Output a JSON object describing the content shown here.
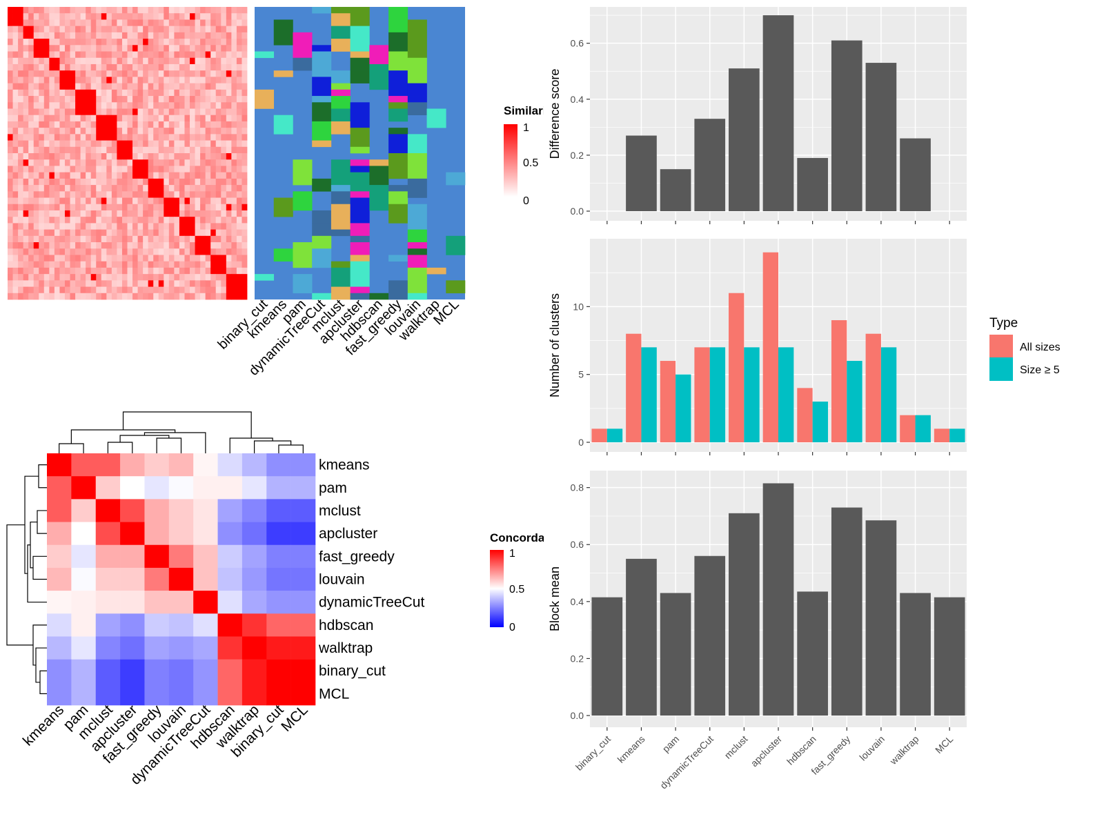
{
  "methods": [
    "binary_cut",
    "kmeans",
    "pam",
    "dynamicTreeCut",
    "mclust",
    "apcluster",
    "hdbscan",
    "fast_greedy",
    "louvain",
    "walktrap",
    "MCL"
  ],
  "colors": {
    "panel_bg": "#EBEBEB",
    "grid": "#FFFFFF",
    "bar": "#595959",
    "all_sizes": "#F8766D",
    "size5": "#00BFC4",
    "heat_high": "#FF0000",
    "heat_low": "#FFFFFF",
    "conc_low": "#0000FF",
    "cluster_default": "#4A86D2"
  },
  "similarity_legend": {
    "title": "Similarity",
    "ticks": [
      "1",
      "0.5",
      "0"
    ]
  },
  "concordance_legend": {
    "title": "Concordance",
    "ticks": [
      "1",
      "0.5",
      "0"
    ]
  },
  "concordance": {
    "row_order": [
      "kmeans",
      "pam",
      "mclust",
      "apcluster",
      "fast_greedy",
      "louvain",
      "dynamicTreeCut",
      "hdbscan",
      "walktrap",
      "binary_cut",
      "MCL"
    ],
    "matrix": [
      [
        1.0,
        0.82,
        0.82,
        0.66,
        0.6,
        0.64,
        0.52,
        0.43,
        0.36,
        0.28,
        0.28
      ],
      [
        0.82,
        1.0,
        0.6,
        0.5,
        0.45,
        0.49,
        0.53,
        0.53,
        0.45,
        0.35,
        0.35
      ],
      [
        0.82,
        0.6,
        1.0,
        0.85,
        0.66,
        0.6,
        0.55,
        0.32,
        0.26,
        0.18,
        0.18
      ],
      [
        0.66,
        0.5,
        0.85,
        1.0,
        0.66,
        0.6,
        0.55,
        0.28,
        0.22,
        0.12,
        0.12
      ],
      [
        0.6,
        0.45,
        0.66,
        0.66,
        1.0,
        0.76,
        0.62,
        0.4,
        0.32,
        0.25,
        0.25
      ],
      [
        0.64,
        0.49,
        0.6,
        0.6,
        0.76,
        1.0,
        0.62,
        0.38,
        0.3,
        0.23,
        0.23
      ],
      [
        0.52,
        0.53,
        0.55,
        0.55,
        0.62,
        0.62,
        1.0,
        0.44,
        0.33,
        0.29,
        0.29
      ],
      [
        0.43,
        0.53,
        0.32,
        0.28,
        0.4,
        0.38,
        0.44,
        1.0,
        0.9,
        0.8,
        0.8
      ],
      [
        0.36,
        0.45,
        0.26,
        0.22,
        0.32,
        0.3,
        0.33,
        0.9,
        1.0,
        0.95,
        0.95
      ],
      [
        0.28,
        0.35,
        0.18,
        0.12,
        0.25,
        0.23,
        0.29,
        0.8,
        0.95,
        1.0,
        1.0
      ],
      [
        0.28,
        0.35,
        0.18,
        0.12,
        0.25,
        0.23,
        0.29,
        0.8,
        0.95,
        1.0,
        1.0
      ]
    ]
  },
  "chart_data": [
    {
      "type": "bar",
      "categories": [
        "binary_cut",
        "kmeans",
        "pam",
        "dynamicTreeCut",
        "mclust",
        "apcluster",
        "hdbscan",
        "fast_greedy",
        "louvain",
        "walktrap",
        "MCL"
      ],
      "values": [
        0,
        0.27,
        0.15,
        0.33,
        0.51,
        0.7,
        0.19,
        0.61,
        0.53,
        0.26,
        0
      ],
      "xlabel": "",
      "ylabel": "Difference score",
      "ylim": [
        0,
        0.72
      ],
      "yticks": [
        0.0,
        0.2,
        0.4,
        0.6
      ],
      "ytick_labels": [
        "0.0",
        "0.2",
        "0.4",
        "0.6"
      ],
      "grid": true
    },
    {
      "type": "bar",
      "categories": [
        "binary_cut",
        "kmeans",
        "pam",
        "dynamicTreeCut",
        "mclust",
        "apcluster",
        "hdbscan",
        "fast_greedy",
        "louvain",
        "walktrap",
        "MCL"
      ],
      "series": [
        {
          "name": "All sizes",
          "values": [
            1,
            8,
            6,
            7,
            11,
            14,
            4,
            9,
            8,
            2,
            1
          ]
        },
        {
          "name": "Size ≥ 5",
          "values": [
            1,
            7,
            5,
            7,
            7,
            7,
            3,
            6,
            7,
            2,
            1
          ]
        }
      ],
      "xlabel": "",
      "ylabel": "Number of clusters",
      "ylim": [
        0,
        14.8
      ],
      "yticks": [
        0,
        5,
        10
      ],
      "ytick_labels": [
        "0",
        "5",
        "10"
      ],
      "legend_title": "Type",
      "legend_position": "right",
      "grid": true
    },
    {
      "type": "bar",
      "categories": [
        "binary_cut",
        "kmeans",
        "pam",
        "dynamicTreeCut",
        "mclust",
        "apcluster",
        "hdbscan",
        "fast_greedy",
        "louvain",
        "walktrap",
        "MCL"
      ],
      "values": [
        0.415,
        0.55,
        0.43,
        0.56,
        0.71,
        0.815,
        0.435,
        0.73,
        0.685,
        0.43,
        0.415
      ],
      "xlabel": "",
      "ylabel": "Block mean",
      "ylim": [
        0,
        0.85
      ],
      "yticks": [
        0.0,
        0.2,
        0.4,
        0.6,
        0.8
      ],
      "ytick_labels": [
        "0.0",
        "0.2",
        "0.4",
        "0.6",
        "0.8"
      ],
      "grid": true
    }
  ]
}
